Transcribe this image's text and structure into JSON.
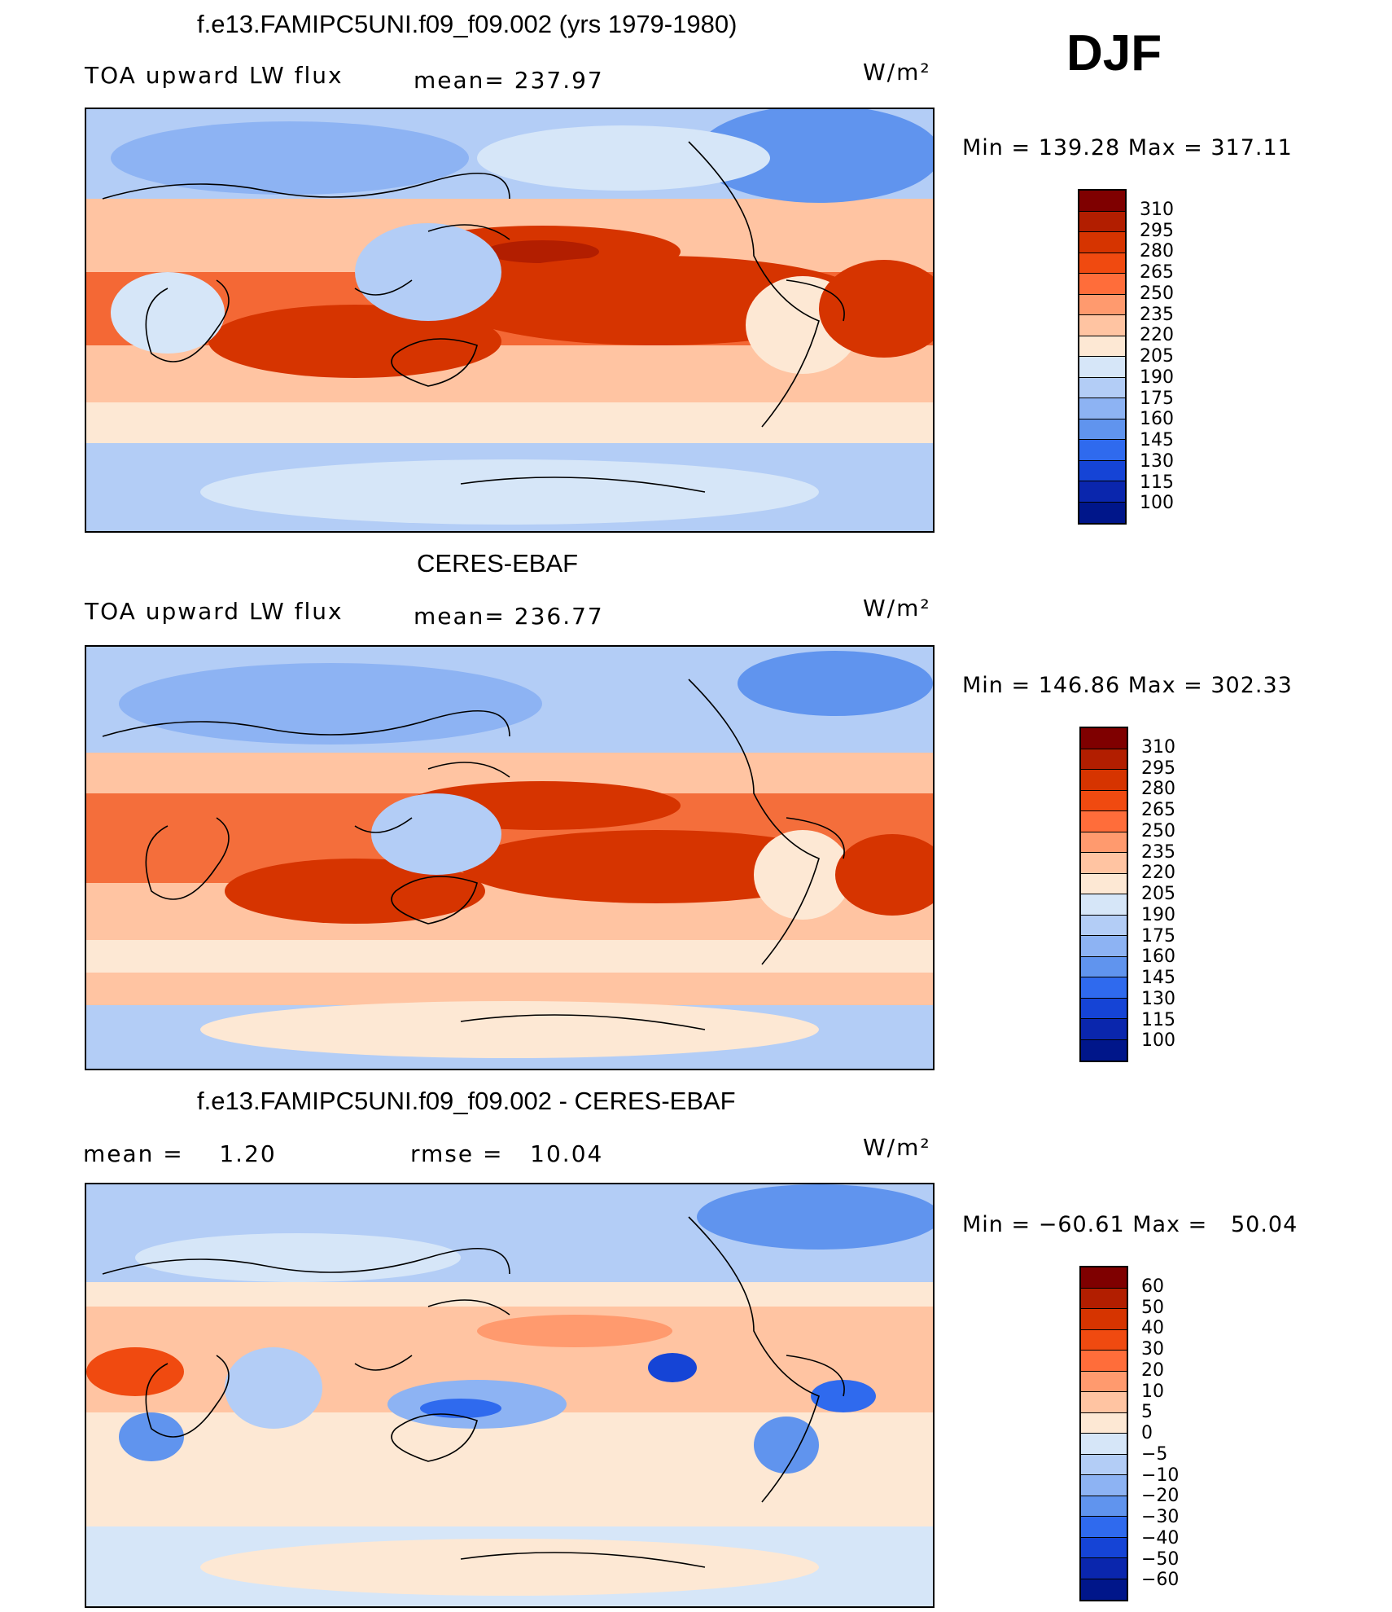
{
  "season": "DJF",
  "panels": [
    {
      "title": "f.e13.FAMIPC5UNI.f09_f09.002 (yrs 1979-1980)",
      "left_label": "TOA upward LW flux",
      "mid_label": "mean= 237.97",
      "units": "W/m²",
      "minmax": "Min = 139.28 Max = 317.11",
      "colorbar": {
        "labels": [
          "310",
          "295",
          "280",
          "265",
          "250",
          "235",
          "220",
          "205",
          "190",
          "175",
          "160",
          "145",
          "130",
          "115",
          "100"
        ],
        "colors": [
          "#7f0000",
          "#b21e00",
          "#d63400",
          "#f04a10",
          "#ff6d3a",
          "#ff9a6e",
          "#ffc4a2",
          "#fde8d4",
          "#d6e6f8",
          "#b3cdf6",
          "#8db3f3",
          "#6094ee",
          "#2f6aee",
          "#1544d6",
          "#0a26ad",
          "#00168a"
        ]
      }
    },
    {
      "title": "CERES-EBAF",
      "left_label": "TOA upward LW flux",
      "mid_label": "mean= 236.77",
      "units": "W/m²",
      "minmax": "Min = 146.86 Max = 302.33",
      "colorbar": {
        "labels": [
          "310",
          "295",
          "280",
          "265",
          "250",
          "235",
          "220",
          "205",
          "190",
          "175",
          "160",
          "145",
          "130",
          "115",
          "100"
        ],
        "colors": [
          "#7f0000",
          "#b21e00",
          "#d63400",
          "#f04a10",
          "#ff6d3a",
          "#ff9a6e",
          "#ffc4a2",
          "#fde8d4",
          "#d6e6f8",
          "#b3cdf6",
          "#8db3f3",
          "#6094ee",
          "#2f6aee",
          "#1544d6",
          "#0a26ad",
          "#00168a"
        ]
      }
    },
    {
      "title": "f.e13.FAMIPC5UNI.f09_f09.002 - CERES-EBAF",
      "left_label": "mean =    1.20",
      "mid_label": "rmse =   10.04",
      "units": "W/m²",
      "minmax": "Min = −60.61 Max =   50.04",
      "colorbar": {
        "labels": [
          "60",
          "50",
          "40",
          "30",
          "20",
          "10",
          "5",
          "0",
          "−5",
          "−10",
          "−20",
          "−30",
          "−40",
          "−50",
          "−60"
        ],
        "colors": [
          "#7f0000",
          "#b21e00",
          "#d63400",
          "#f04a10",
          "#ff6d3a",
          "#ff9a6e",
          "#ffc4a2",
          "#fde8d4",
          "#d6e6f8",
          "#b3cdf6",
          "#8db3f3",
          "#6094ee",
          "#2f6aee",
          "#1544d6",
          "#0a26ad",
          "#00168a"
        ]
      }
    }
  ]
}
